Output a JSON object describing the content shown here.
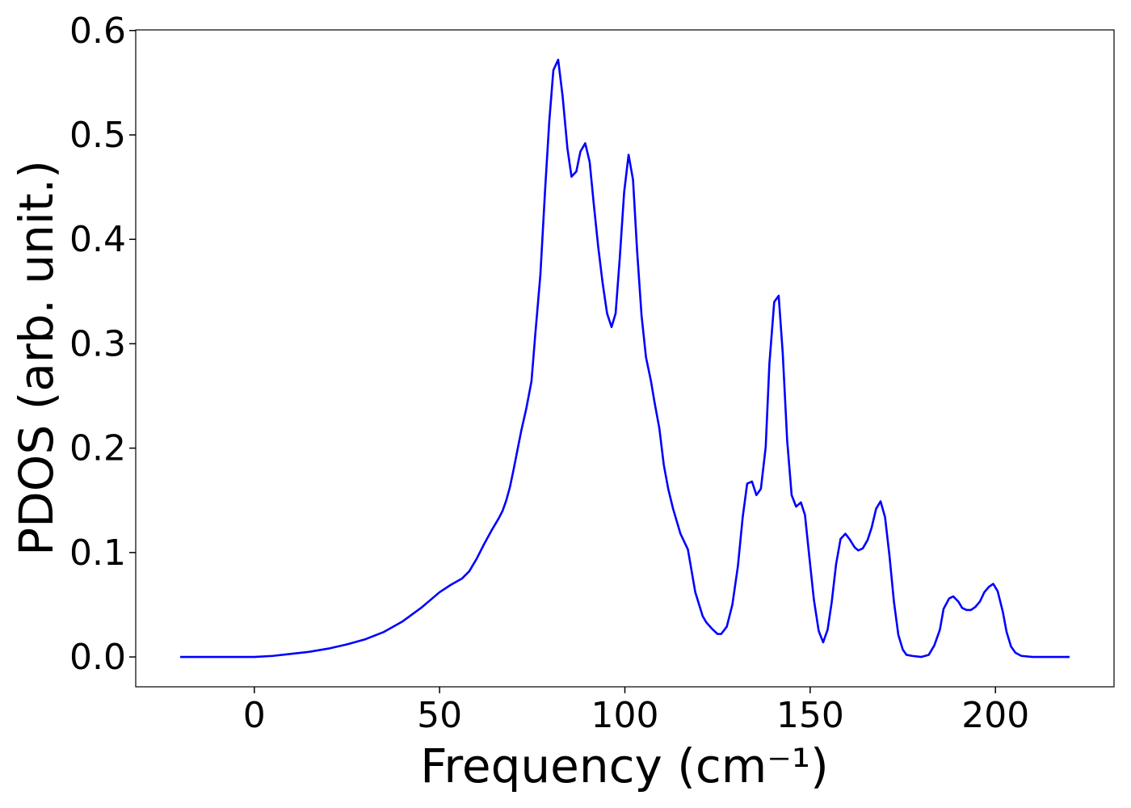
{
  "chart_data": {
    "type": "line",
    "xlabel": "Frequency (cm⁻¹)",
    "ylabel": "PDOS (arb. unit.)",
    "xlim": [
      -32,
      232
    ],
    "ylim": [
      -0.0286,
      0.6006
    ],
    "xticks": [
      0,
      50,
      100,
      150,
      200
    ],
    "yticks": [
      {
        "value": 0,
        "label": "0.0"
      },
      0.1,
      0.2,
      0.3,
      0.4,
      0.5,
      0.6
    ],
    "grid": false,
    "x": [
      -20,
      0,
      5,
      10,
      15,
      20,
      25,
      30,
      35,
      40,
      45,
      48,
      50,
      53,
      56,
      58,
      60,
      62,
      64,
      66,
      67,
      68,
      69,
      70,
      71,
      72,
      73.4,
      74.8,
      75.8,
      77.2,
      78.5,
      79.6,
      80.7,
      82,
      83.2,
      84.5,
      85.6,
      86.9,
      88,
      89.3,
      90.5,
      91.6,
      92.8,
      94,
      95.2,
      96.4,
      97.5,
      98.6,
      99.8,
      101,
      102.2,
      103.3,
      104.5,
      105.7,
      107,
      108,
      109.3,
      110.5,
      111.7,
      113,
      115,
      117,
      119,
      121,
      122,
      123.5,
      125,
      126,
      127.5,
      129,
      130.5,
      131.8,
      133,
      134.3,
      135.5,
      136.7,
      138,
      139,
      140.3,
      141.5,
      142.6,
      143.8,
      145,
      146.2,
      147.5,
      148.6,
      149.8,
      151,
      152.3,
      153.5,
      154.7,
      155.8,
      157,
      158.2,
      159.5,
      160.6,
      162,
      163,
      164.2,
      165.5,
      166.6,
      167.8,
      169,
      170.2,
      171.4,
      172.6,
      173.8,
      175,
      176,
      177.5,
      180,
      182,
      183.5,
      185,
      186,
      187.5,
      188.6,
      190,
      191,
      192.2,
      193.4,
      194.6,
      195.8,
      197,
      198.2,
      199.4,
      200.6,
      202,
      203,
      204.2,
      205.4,
      207,
      210,
      220
    ],
    "series": [
      {
        "name": "PDOS",
        "color": "#0000ff",
        "values": [
          0,
          0,
          0.001,
          0.003,
          0.005,
          0.008,
          0.012,
          0.017,
          0.024,
          0.034,
          0.047,
          0.056,
          0.062,
          0.069,
          0.075,
          0.082,
          0.094,
          0.108,
          0.121,
          0.133,
          0.14,
          0.15,
          0.163,
          0.18,
          0.198,
          0.216,
          0.238,
          0.264,
          0.308,
          0.366,
          0.449,
          0.513,
          0.562,
          0.572,
          0.537,
          0.487,
          0.46,
          0.465,
          0.484,
          0.492,
          0.474,
          0.434,
          0.393,
          0.358,
          0.329,
          0.316,
          0.329,
          0.381,
          0.445,
          0.481,
          0.457,
          0.389,
          0.327,
          0.287,
          0.265,
          0.244,
          0.219,
          0.184,
          0.161,
          0.142,
          0.118,
          0.103,
          0.062,
          0.039,
          0.033,
          0.027,
          0.022,
          0.022,
          0.029,
          0.05,
          0.087,
          0.134,
          0.166,
          0.168,
          0.155,
          0.161,
          0.201,
          0.281,
          0.34,
          0.346,
          0.291,
          0.207,
          0.155,
          0.144,
          0.148,
          0.136,
          0.095,
          0.055,
          0.025,
          0.014,
          0.026,
          0.052,
          0.089,
          0.113,
          0.118,
          0.113,
          0.105,
          0.102,
          0.104,
          0.112,
          0.124,
          0.142,
          0.149,
          0.134,
          0.097,
          0.053,
          0.021,
          0.007,
          0.002,
          0.001,
          0,
          0.002,
          0.011,
          0.026,
          0.046,
          0.056,
          0.058,
          0.053,
          0.047,
          0.045,
          0.045,
          0.048,
          0.053,
          0.062,
          0.067,
          0.07,
          0.063,
          0.043,
          0.024,
          0.01,
          0.004,
          0.001,
          0,
          0
        ]
      }
    ]
  }
}
